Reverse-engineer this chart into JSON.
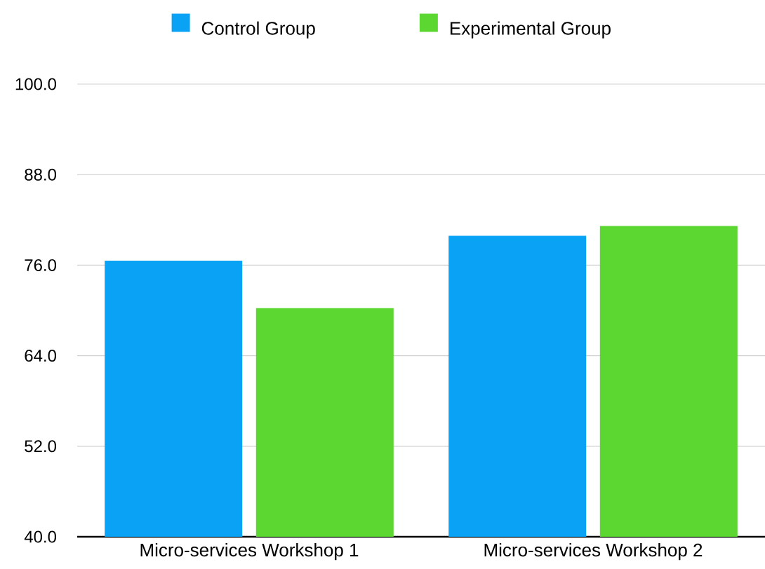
{
  "chart_data": {
    "type": "bar",
    "categories": [
      "Micro-services Workshop 1",
      "Micro-services Workshop 2"
    ],
    "series": [
      {
        "name": "Control Group",
        "color": "#0aa2f5",
        "values": [
          76.6,
          79.9
        ]
      },
      {
        "name": "Experimental Group",
        "color": "#5cd631",
        "values": [
          70.3,
          81.2
        ]
      }
    ],
    "ylim": [
      40,
      100
    ],
    "yticks": [
      {
        "value": 40,
        "label": "40.0"
      },
      {
        "value": 52,
        "label": "52.0"
      },
      {
        "value": 64,
        "label": "64.0"
      },
      {
        "value": 76,
        "label": "76.0"
      },
      {
        "value": 88,
        "label": "88.0"
      },
      {
        "value": 100,
        "label": "100.0"
      }
    ],
    "grid": "y",
    "legend": "top"
  }
}
